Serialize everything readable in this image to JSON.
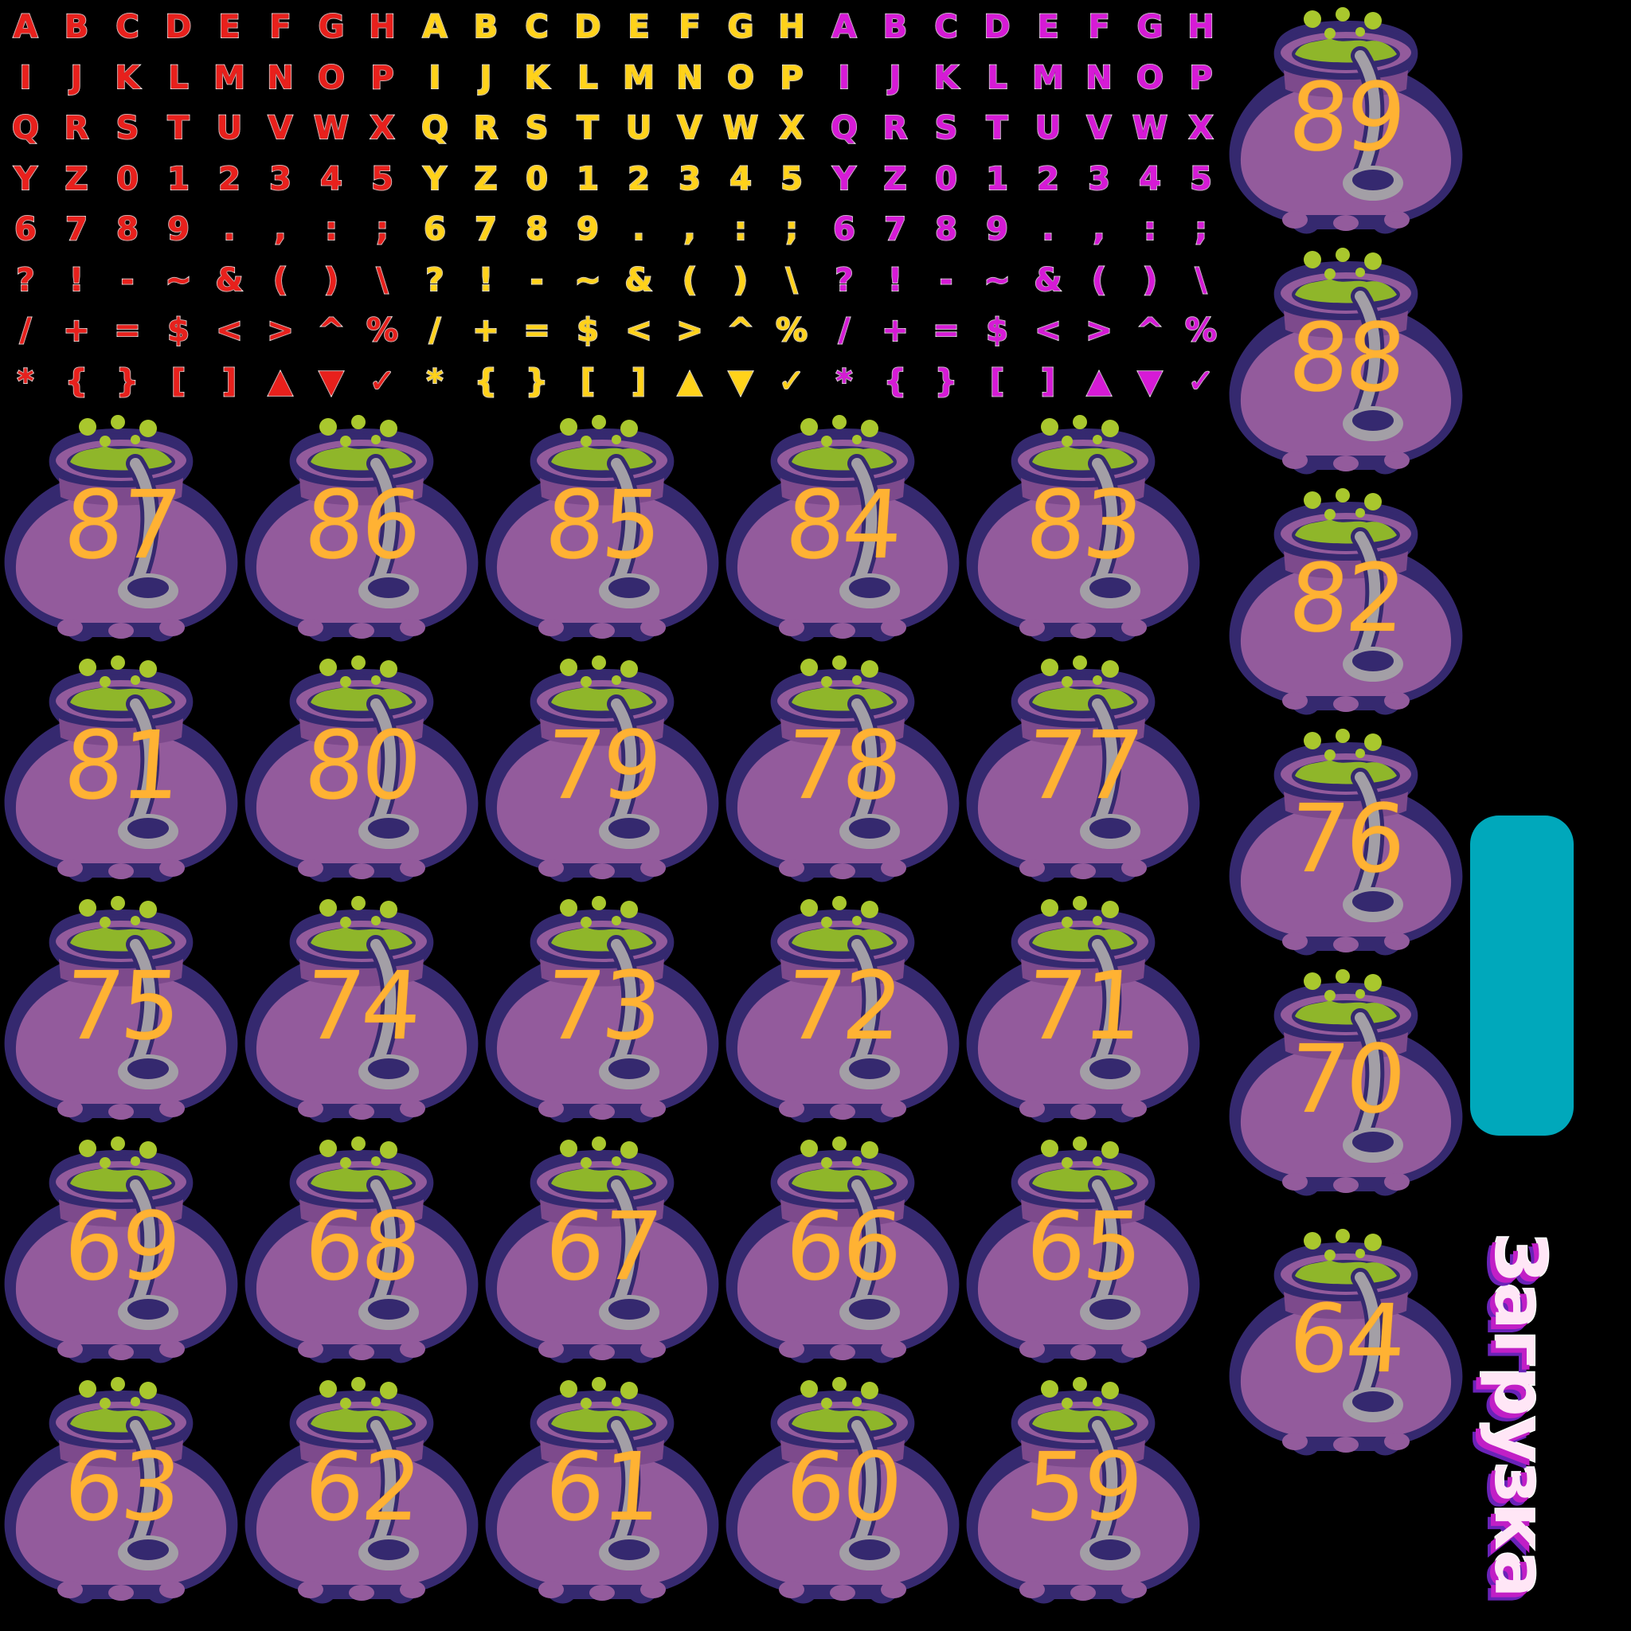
{
  "font_atlas": {
    "rows": [
      [
        "A",
        "B",
        "C",
        "D",
        "E",
        "F",
        "G",
        "H"
      ],
      [
        "I",
        "J",
        "K",
        "L",
        "M",
        "N",
        "O",
        "P"
      ],
      [
        "Q",
        "R",
        "S",
        "T",
        "U",
        "V",
        "W",
        "X"
      ],
      [
        "Y",
        "Z",
        "0",
        "1",
        "2",
        "3",
        "4",
        "5"
      ],
      [
        "6",
        "7",
        "8",
        "9",
        ".",
        ",",
        ":",
        ";"
      ],
      [
        "?",
        "!",
        "-",
        "~",
        "&",
        "(",
        ")",
        "\\"
      ],
      [
        "/",
        "+",
        "=",
        "$",
        "<",
        ">",
        "^",
        "%"
      ],
      [
        "*",
        "{",
        "}",
        "[",
        "]",
        "▲",
        "▼",
        "✓"
      ]
    ],
    "color_sets": [
      {
        "name": "red",
        "color": "#e8201c"
      },
      {
        "name": "yellow",
        "color": "#ffd21a"
      },
      {
        "name": "magenta",
        "color": "#d61ad6"
      }
    ]
  },
  "cauldron_frames": {
    "right_column": [
      "89",
      "88",
      "82",
      "76",
      "70",
      "64"
    ],
    "grid_rows": [
      [
        "87",
        "86",
        "85",
        "84",
        "83"
      ],
      [
        "81",
        "80",
        "79",
        "78",
        "77"
      ],
      [
        "75",
        "74",
        "73",
        "72",
        "71"
      ],
      [
        "69",
        "68",
        "67",
        "66",
        "65"
      ],
      [
        "63",
        "62",
        "61",
        "60",
        "59"
      ]
    ],
    "colors": {
      "body": "#935b9c",
      "outline": "#35296f",
      "rim": "#7d4a8c",
      "potion": "#8fb62a",
      "bubble": "#a9c72d",
      "ladle": "#a39fa6",
      "number": "#ffb233"
    }
  },
  "loading_bar": {
    "color": "#00a8bb"
  },
  "loading_label": {
    "text": "Загрузка"
  }
}
